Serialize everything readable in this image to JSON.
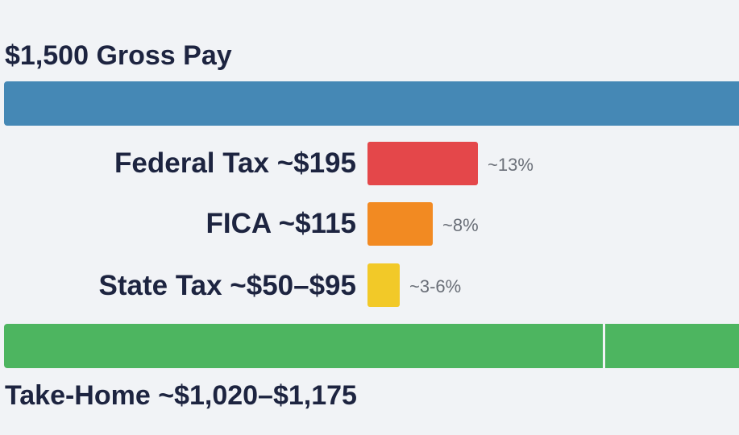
{
  "chart_data": {
    "type": "bar",
    "title": "$1,500 Gross Pay",
    "gross": {
      "label": "$1,500 Gross Pay",
      "value": 1500,
      "color": "#4588b5"
    },
    "deductions": [
      {
        "label": "Federal Tax ~$195",
        "value": 195,
        "percent_label": "~13%",
        "percent": 13,
        "color": "#e4474a"
      },
      {
        "label": "FICA ~$115",
        "value": 115,
        "percent_label": "~8%",
        "percent": 8,
        "color": "#f28a22"
      },
      {
        "label": "State Tax ~$50–$95",
        "value_range": [
          50,
          95
        ],
        "percent_label": "~3-6%",
        "percent_range": [
          3,
          6
        ],
        "color": "#f2c928"
      }
    ],
    "take_home": {
      "label": "Take-Home ~$1,020–$1,175",
      "value_range": [
        1020,
        1175
      ],
      "color": "#4db560"
    }
  }
}
